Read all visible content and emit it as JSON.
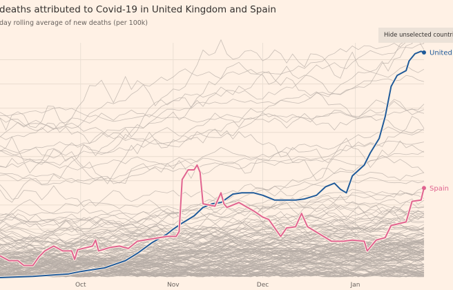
{
  "header": {
    "title": "deaths attributed to Covid-19 in United Kingdom and Spain",
    "subtitle": "day rolling average of new deaths (per 100k)"
  },
  "controls": {
    "hide_unselected_label": "Hide unselected countries,"
  },
  "chart_data": {
    "type": "line",
    "title": "deaths attributed to Covid-19 in United Kingdom and Spain",
    "subtitle": "day rolling average of new deaths (per 100k)",
    "xlim": [
      "2020-09-04",
      "2021-01-24"
    ],
    "ylim": [
      0,
      1.94
    ],
    "x_ticks": [
      {
        "date": "2020-10-01",
        "label": "Oct"
      },
      {
        "date": "2020-11-01",
        "label": "Nov"
      },
      {
        "date": "2020-12-01",
        "label": "Dec"
      },
      {
        "date": "2021-01-01",
        "label": "Jan"
      }
    ],
    "grid": "horizontal",
    "background_series_color": "#b5aca5",
    "series": [
      {
        "name": "United Kingdom",
        "label": "United K",
        "color": "#1f5a99",
        "points": [
          [
            "2020-09-04",
            0.0
          ],
          [
            "2020-09-15",
            0.01
          ],
          [
            "2020-09-27",
            0.03
          ],
          [
            "2020-10-01",
            0.05
          ],
          [
            "2020-10-09",
            0.08
          ],
          [
            "2020-10-16",
            0.14
          ],
          [
            "2020-10-20",
            0.2
          ],
          [
            "2020-10-25",
            0.29
          ],
          [
            "2020-10-30",
            0.36
          ],
          [
            "2020-11-01",
            0.4
          ],
          [
            "2020-11-04",
            0.45
          ],
          [
            "2020-11-08",
            0.51
          ],
          [
            "2020-11-11",
            0.58
          ],
          [
            "2020-11-14",
            0.61
          ],
          [
            "2020-11-17",
            0.62
          ],
          [
            "2020-11-21",
            0.69
          ],
          [
            "2020-11-24",
            0.7
          ],
          [
            "2020-11-28",
            0.7
          ],
          [
            "2020-12-01",
            0.68
          ],
          [
            "2020-12-05",
            0.64
          ],
          [
            "2020-12-08",
            0.64
          ],
          [
            "2020-12-12",
            0.64
          ],
          [
            "2020-12-15",
            0.65
          ],
          [
            "2020-12-19",
            0.68
          ],
          [
            "2020-12-22",
            0.75
          ],
          [
            "2020-12-25",
            0.78
          ],
          [
            "2020-12-27",
            0.73
          ],
          [
            "2020-12-29",
            0.7
          ],
          [
            "2020-12-31",
            0.84
          ],
          [
            "2021-01-04",
            0.93
          ],
          [
            "2021-01-06",
            1.03
          ],
          [
            "2021-01-09",
            1.15
          ],
          [
            "2021-01-11",
            1.33
          ],
          [
            "2021-01-13",
            1.58
          ],
          [
            "2021-01-15",
            1.67
          ],
          [
            "2021-01-18",
            1.71
          ],
          [
            "2021-01-19",
            1.79
          ],
          [
            "2021-01-21",
            1.85
          ],
          [
            "2021-01-23",
            1.87
          ],
          [
            "2021-01-24",
            1.86
          ]
        ]
      },
      {
        "name": "Spain",
        "label": "Spain",
        "color": "#e0638f",
        "points": [
          [
            "2020-09-04",
            0.18
          ],
          [
            "2020-09-07",
            0.14
          ],
          [
            "2020-09-10",
            0.14
          ],
          [
            "2020-09-12",
            0.1
          ],
          [
            "2020-09-15",
            0.1
          ],
          [
            "2020-09-17",
            0.17
          ],
          [
            "2020-09-19",
            0.22
          ],
          [
            "2020-09-22",
            0.26
          ],
          [
            "2020-09-25",
            0.22
          ],
          [
            "2020-09-28",
            0.22
          ],
          [
            "2020-09-29",
            0.15
          ],
          [
            "2020-09-30",
            0.23
          ],
          [
            "2020-10-05",
            0.26
          ],
          [
            "2020-10-06",
            0.31
          ],
          [
            "2020-10-07",
            0.22
          ],
          [
            "2020-10-11",
            0.25
          ],
          [
            "2020-10-14",
            0.26
          ],
          [
            "2020-10-17",
            0.24
          ],
          [
            "2020-10-20",
            0.3
          ],
          [
            "2020-10-25",
            0.32
          ],
          [
            "2020-10-30",
            0.34
          ],
          [
            "2020-11-02",
            0.34
          ],
          [
            "2020-11-03",
            0.38
          ],
          [
            "2020-11-04",
            0.81
          ],
          [
            "2020-11-06",
            0.89
          ],
          [
            "2020-11-08",
            0.89
          ],
          [
            "2020-11-09",
            0.93
          ],
          [
            "2020-11-10",
            0.87
          ],
          [
            "2020-11-11",
            0.61
          ],
          [
            "2020-11-15",
            0.59
          ],
          [
            "2020-11-17",
            0.7
          ],
          [
            "2020-11-18",
            0.61
          ],
          [
            "2020-11-19",
            0.58
          ],
          [
            "2020-11-23",
            0.62
          ],
          [
            "2020-11-28",
            0.55
          ],
          [
            "2020-12-01",
            0.5
          ],
          [
            "2020-12-03",
            0.48
          ],
          [
            "2020-12-07",
            0.34
          ],
          [
            "2020-12-09",
            0.41
          ],
          [
            "2020-12-12",
            0.42
          ],
          [
            "2020-12-14",
            0.53
          ],
          [
            "2020-12-16",
            0.42
          ],
          [
            "2020-12-20",
            0.36
          ],
          [
            "2020-12-24",
            0.3
          ],
          [
            "2020-12-28",
            0.3
          ],
          [
            "2020-12-31",
            0.31
          ],
          [
            "2021-01-04",
            0.3
          ],
          [
            "2021-01-05",
            0.22
          ],
          [
            "2021-01-08",
            0.31
          ],
          [
            "2021-01-11",
            0.33
          ],
          [
            "2021-01-13",
            0.43
          ],
          [
            "2021-01-18",
            0.46
          ],
          [
            "2021-01-20",
            0.63
          ],
          [
            "2021-01-23",
            0.64
          ],
          [
            "2021-01-24",
            0.74
          ]
        ]
      }
    ]
  }
}
